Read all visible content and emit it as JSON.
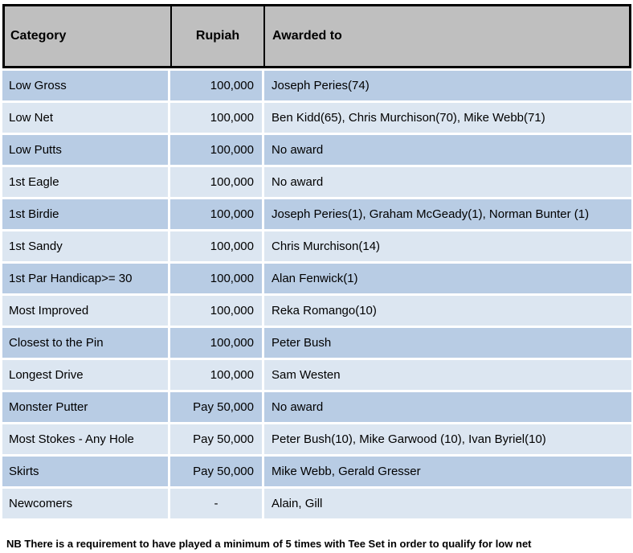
{
  "table": {
    "columns": {
      "category": "Category",
      "rupiah": "Rupiah",
      "awarded": "Awarded to"
    },
    "rows": [
      {
        "category": "Low Gross",
        "rupiah": "100,000",
        "awarded": "Joseph Peries(74)"
      },
      {
        "category": "Low Net",
        "rupiah": "100,000",
        "awarded": "Ben Kidd(65), Chris Murchison(70), Mike Webb(71)"
      },
      {
        "category": "Low Putts",
        "rupiah": "100,000",
        "awarded": "No award"
      },
      {
        "category": "1st Eagle",
        "rupiah": "100,000",
        "awarded": "No award"
      },
      {
        "category": "1st Birdie",
        "rupiah": "100,000",
        "awarded": "Joseph Peries(1), Graham McGeady(1), Norman Bunter (1)"
      },
      {
        "category": "1st Sandy",
        "rupiah": "100,000",
        "awarded": "Chris Murchison(14)"
      },
      {
        "category": "1st Par Handicap>= 30",
        "rupiah": "100,000",
        "awarded": "Alan Fenwick(1)"
      },
      {
        "category": "Most Improved",
        "rupiah": "100,000",
        "awarded": "Reka Romango(10)"
      },
      {
        "category": "Closest to the Pin",
        "rupiah": "100,000",
        "awarded": "Peter Bush"
      },
      {
        "category": "Longest Drive",
        "rupiah": "100,000",
        "awarded": "Sam Westen"
      },
      {
        "category": "Monster Putter",
        "rupiah": "Pay 50,000",
        "awarded": "No award"
      },
      {
        "category": "Most Stokes - Any Hole",
        "rupiah": "Pay 50,000",
        "awarded": "Peter Bush(10), Mike Garwood (10), Ivan Byriel(10)"
      },
      {
        "category": "Skirts",
        "rupiah": "Pay 50,000",
        "awarded": "Mike Webb, Gerald Gresser"
      },
      {
        "category": "Newcomers",
        "rupiah": "-",
        "awarded": "Alain, Gill"
      }
    ]
  },
  "footer": {
    "note": "NB There is a requirement to have played a minimum of 5 times with Tee Set in order to qualify for low net"
  },
  "colors": {
    "header_bg": "#BFBFBF",
    "row_dark": "#B8CCE4",
    "row_light": "#DCE6F1",
    "border": "#000000"
  }
}
